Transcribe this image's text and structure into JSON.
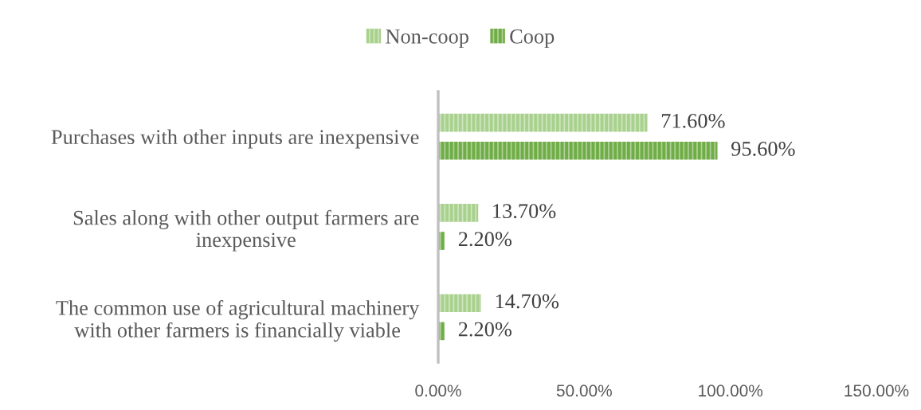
{
  "chart_data": {
    "type": "bar",
    "orientation": "horizontal",
    "categories": [
      "Purchases with other inputs are inexpensive",
      "Sales along with other output farmers are\ninexpensive",
      "The common use of agricultural machinery\nwith other farmers is financially viable"
    ],
    "series": [
      {
        "name": "Non-coop",
        "color": "#a9d18e",
        "values": [
          71.6,
          13.7,
          14.7
        ],
        "value_labels": [
          "71.60%",
          "13.70%",
          "14.70%"
        ]
      },
      {
        "name": "Coop",
        "color": "#70ad47",
        "values": [
          95.6,
          2.2,
          2.2
        ],
        "value_labels": [
          "95.60%",
          "2.20%",
          "2.20%"
        ]
      }
    ],
    "xlim": [
      0,
      150
    ],
    "xticks": [
      {
        "value": 0,
        "label": "0.00%"
      },
      {
        "value": 50,
        "label": "50.00%"
      },
      {
        "value": 100,
        "label": "100.00%"
      },
      {
        "value": 150,
        "label": "150.00%"
      }
    ],
    "legend": "top",
    "grid": false
  }
}
